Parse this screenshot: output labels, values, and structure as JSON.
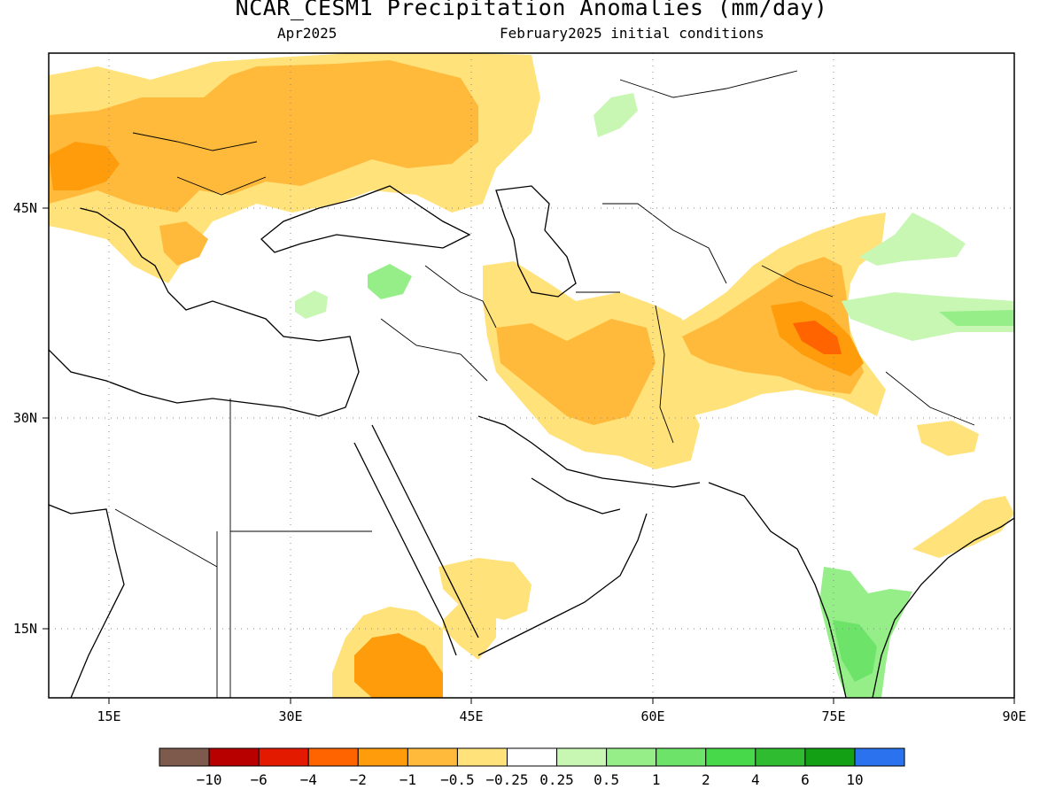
{
  "title": "NCAR_CESM1 Precipitation Anomalies (mm/day)",
  "valid_month": "Apr2025",
  "init_conditions": "February2025 initial conditions",
  "map": {
    "lon_labels": [
      "15E",
      "30E",
      "45E",
      "60E",
      "75E",
      "90E"
    ],
    "lat_labels": [
      "45N",
      "30N",
      "15N"
    ],
    "lon_range": [
      10,
      90
    ],
    "lat_range": [
      10,
      55
    ],
    "grid": "dotted"
  },
  "colorbar": {
    "colors": [
      "#7d5a4b",
      "#b90000",
      "#e41a00",
      "#ff6400",
      "#ff9c0c",
      "#ffba3c",
      "#ffe27a",
      "#ffffff",
      "#c8f7b4",
      "#96ee89",
      "#6de36a",
      "#48d94a",
      "#2fbc30",
      "#14a014",
      "#2a72ee"
    ],
    "labels": [
      "-10",
      "-6",
      "-4",
      "-2",
      "-1",
      "-0.5",
      "-0.25",
      "0.25",
      "0.5",
      "1",
      "2",
      "4",
      "6",
      "10"
    ]
  },
  "colors": {
    "dry_light": "#ffe27a",
    "dry_mid": "#ffba3c",
    "dry_strong": "#ff9c0c",
    "dry_peak": "#ff6400",
    "wet_light": "#c8f7b4",
    "wet_mid": "#96ee89",
    "wet_strong": "#6de36a"
  }
}
